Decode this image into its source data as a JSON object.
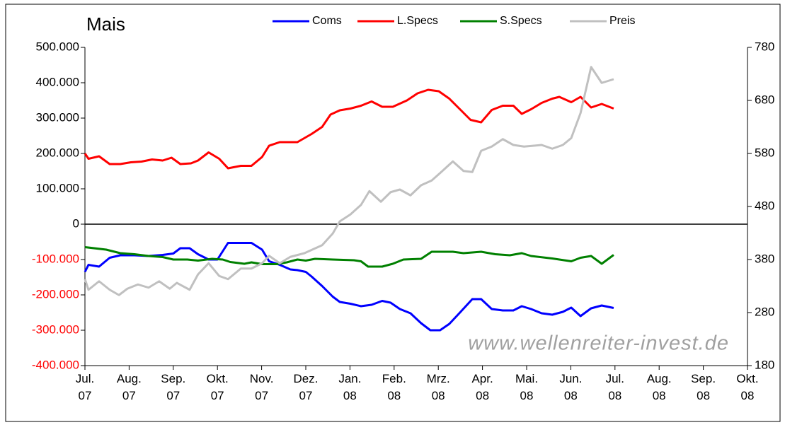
{
  "chart_data": {
    "type": "line",
    "title": "Mais",
    "watermark": "www.wellenreiter-invest.de",
    "xlim": [
      0,
      15
    ],
    "xticks": [
      {
        "value": 0,
        "label": "Jul. 07"
      },
      {
        "value": 1,
        "label": "Aug. 07"
      },
      {
        "value": 2,
        "label": "Sep. 07"
      },
      {
        "value": 3,
        "label": "Okt. 07"
      },
      {
        "value": 4,
        "label": "Nov. 07"
      },
      {
        "value": 5,
        "label": "Dez. 07"
      },
      {
        "value": 6,
        "label": "Jan. 08"
      },
      {
        "value": 7,
        "label": "Feb. 08"
      },
      {
        "value": 8,
        "label": "Mrz. 08"
      },
      {
        "value": 9,
        "label": "Apr. 08"
      },
      {
        "value": 10,
        "label": "Mai. 08"
      },
      {
        "value": 11,
        "label": "Jun. 08"
      },
      {
        "value": 12,
        "label": "Jul. 08"
      },
      {
        "value": 13,
        "label": "Aug. 08"
      },
      {
        "value": 14,
        "label": "Sep. 08"
      },
      {
        "value": 15,
        "label": "Okt. 08"
      }
    ],
    "ylim": [
      -400000,
      500000
    ],
    "yticks": [
      {
        "value": -400000,
        "label": "-400.000"
      },
      {
        "value": -300000,
        "label": "-300.000"
      },
      {
        "value": -200000,
        "label": "-200.000"
      },
      {
        "value": -100000,
        "label": "-100.000"
      },
      0,
      {
        "value": 100000,
        "label": "100.000"
      },
      {
        "value": 200000,
        "label": "200.000"
      },
      {
        "value": 300000,
        "label": "300.000"
      },
      {
        "value": 400000,
        "label": "400.000"
      },
      {
        "value": 500000,
        "label": "500.000"
      }
    ],
    "negative_tick_color": "#ff0000",
    "y2lim": [
      180,
      780
    ],
    "y2ticks": [
      180,
      280,
      380,
      480,
      580,
      680,
      780
    ],
    "legend": "top",
    "series": [
      {
        "name": "Coms",
        "color": "#0000ff",
        "x": [
          0,
          0.08,
          0.32,
          0.56,
          0.8,
          1.12,
          1.44,
          1.76,
          2.0,
          2.16,
          2.37,
          2.56,
          2.8,
          3.0,
          3.24,
          3.77,
          4.01,
          4.17,
          4.41,
          4.65,
          4.81,
          5.0,
          5.13,
          5.37,
          5.61,
          5.77,
          6.01,
          6.25,
          6.49,
          6.73,
          6.92,
          7.13,
          7.37,
          7.61,
          7.82,
          8.04,
          8.25,
          8.49,
          8.77,
          8.97,
          9.21,
          9.46,
          9.7,
          9.89,
          10.1,
          10.34,
          10.58,
          10.82,
          11.01,
          11.22,
          11.46,
          11.7,
          11.97
        ],
        "values": [
          -135000,
          -115000,
          -120000,
          -95000,
          -88000,
          -88000,
          -90000,
          -87000,
          -83000,
          -68000,
          -68000,
          -85000,
          -100000,
          -100000,
          -53000,
          -53000,
          -72000,
          -105000,
          -115000,
          -128000,
          -130000,
          -135000,
          -148000,
          -175000,
          -205000,
          -220000,
          -225000,
          -232000,
          -228000,
          -217000,
          -222000,
          -240000,
          -252000,
          -280000,
          -300000,
          -300000,
          -282000,
          -250000,
          -212000,
          -212000,
          -240000,
          -244000,
          -244000,
          -232000,
          -240000,
          -252000,
          -256000,
          -248000,
          -236000,
          -260000,
          -238000,
          -230000,
          -237000
        ]
      },
      {
        "name": "L.Specs",
        "color": "#ff0000",
        "x": [
          0,
          0.08,
          0.32,
          0.56,
          0.8,
          1.04,
          1.28,
          1.52,
          1.76,
          1.96,
          2.16,
          2.4,
          2.56,
          2.8,
          3.04,
          3.24,
          3.53,
          3.77,
          4.01,
          4.17,
          4.41,
          4.81,
          5.13,
          5.37,
          5.56,
          5.77,
          6.01,
          6.25,
          6.49,
          6.73,
          6.97,
          7.29,
          7.53,
          7.77,
          8.01,
          8.25,
          8.49,
          8.73,
          8.97,
          9.21,
          9.46,
          9.7,
          9.89,
          10.1,
          10.34,
          10.58,
          10.74,
          11.01,
          11.22,
          11.46,
          11.7,
          11.97
        ],
        "values": [
          200000,
          185000,
          192000,
          170000,
          170000,
          175000,
          177000,
          183000,
          180000,
          188000,
          170000,
          172000,
          180000,
          203000,
          185000,
          158000,
          165000,
          165000,
          190000,
          222000,
          232000,
          232000,
          255000,
          275000,
          310000,
          322000,
          327000,
          335000,
          347000,
          332000,
          332000,
          350000,
          370000,
          380000,
          376000,
          355000,
          325000,
          295000,
          288000,
          323000,
          335000,
          335000,
          312000,
          325000,
          343000,
          355000,
          360000,
          345000,
          360000,
          330000,
          340000,
          327000
        ]
      },
      {
        "name": "S.Specs",
        "color": "#008000",
        "x": [
          0,
          0.48,
          0.8,
          1.12,
          1.44,
          1.76,
          2.0,
          2.32,
          2.56,
          2.88,
          3.12,
          3.29,
          3.61,
          3.77,
          4.01,
          4.33,
          4.57,
          4.81,
          5.0,
          5.21,
          5.61,
          6.09,
          6.25,
          6.41,
          6.73,
          6.97,
          7.21,
          7.61,
          7.85,
          8.33,
          8.57,
          8.97,
          9.29,
          9.62,
          9.89,
          10.1,
          10.58,
          11.01,
          11.22,
          11.46,
          11.7,
          11.97
        ],
        "values": [
          -65000,
          -72000,
          -82000,
          -85000,
          -90000,
          -93000,
          -100000,
          -100000,
          -103000,
          -98000,
          -100000,
          -107000,
          -112000,
          -108000,
          -113000,
          -113000,
          -108000,
          -100000,
          -103000,
          -98000,
          -100000,
          -102000,
          -105000,
          -120000,
          -120000,
          -112000,
          -100000,
          -98000,
          -78000,
          -78000,
          -82000,
          -78000,
          -85000,
          -88000,
          -82000,
          -90000,
          -97000,
          -105000,
          -95000,
          -90000,
          -112000,
          -87000
        ]
      },
      {
        "name": "Preis",
        "color": "#c0c0c0",
        "axis": "y2",
        "x": [
          0,
          0.08,
          0.32,
          0.56,
          0.77,
          0.96,
          1.2,
          1.44,
          1.68,
          1.92,
          2.08,
          2.37,
          2.56,
          2.8,
          3.04,
          3.24,
          3.53,
          3.77,
          4.01,
          4.17,
          4.41,
          4.65,
          4.97,
          5.37,
          5.61,
          5.77,
          6.01,
          6.25,
          6.44,
          6.7,
          6.92,
          7.13,
          7.37,
          7.61,
          7.85,
          8.04,
          8.33,
          8.57,
          8.77,
          8.97,
          9.21,
          9.46,
          9.7,
          9.94,
          10.34,
          10.58,
          10.82,
          11.01,
          11.22,
          11.46,
          11.7,
          11.97
        ],
        "values": [
          343,
          323,
          339,
          323,
          313,
          325,
          333,
          327,
          339,
          325,
          336,
          323,
          352,
          373,
          349,
          343,
          363,
          363,
          373,
          387,
          373,
          385,
          392,
          407,
          429,
          452,
          465,
          483,
          509,
          489,
          507,
          512,
          501,
          520,
          529,
          543,
          565,
          547,
          545,
          585,
          593,
          607,
          596,
          593,
          596,
          589,
          596,
          609,
          656,
          743,
          713,
          720
        ]
      }
    ]
  }
}
